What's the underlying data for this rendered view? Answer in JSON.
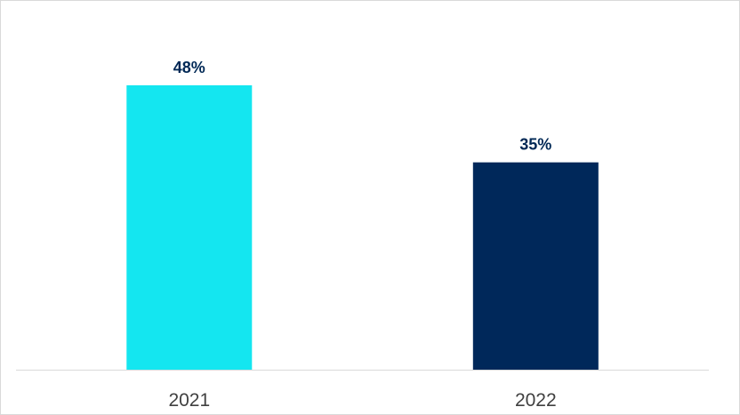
{
  "chart_data": {
    "type": "bar",
    "categories": [
      "2021",
      "2022"
    ],
    "values": [
      48,
      35
    ],
    "value_labels": [
      "48%",
      "35%"
    ],
    "colors": [
      "#14E6F0",
      "#00285A"
    ],
    "label_color": "#002855",
    "axis_color": "#D9D9D9",
    "tick_label_color": "#404040",
    "ylim": [
      0,
      60
    ],
    "grid": false,
    "legend": "none"
  }
}
